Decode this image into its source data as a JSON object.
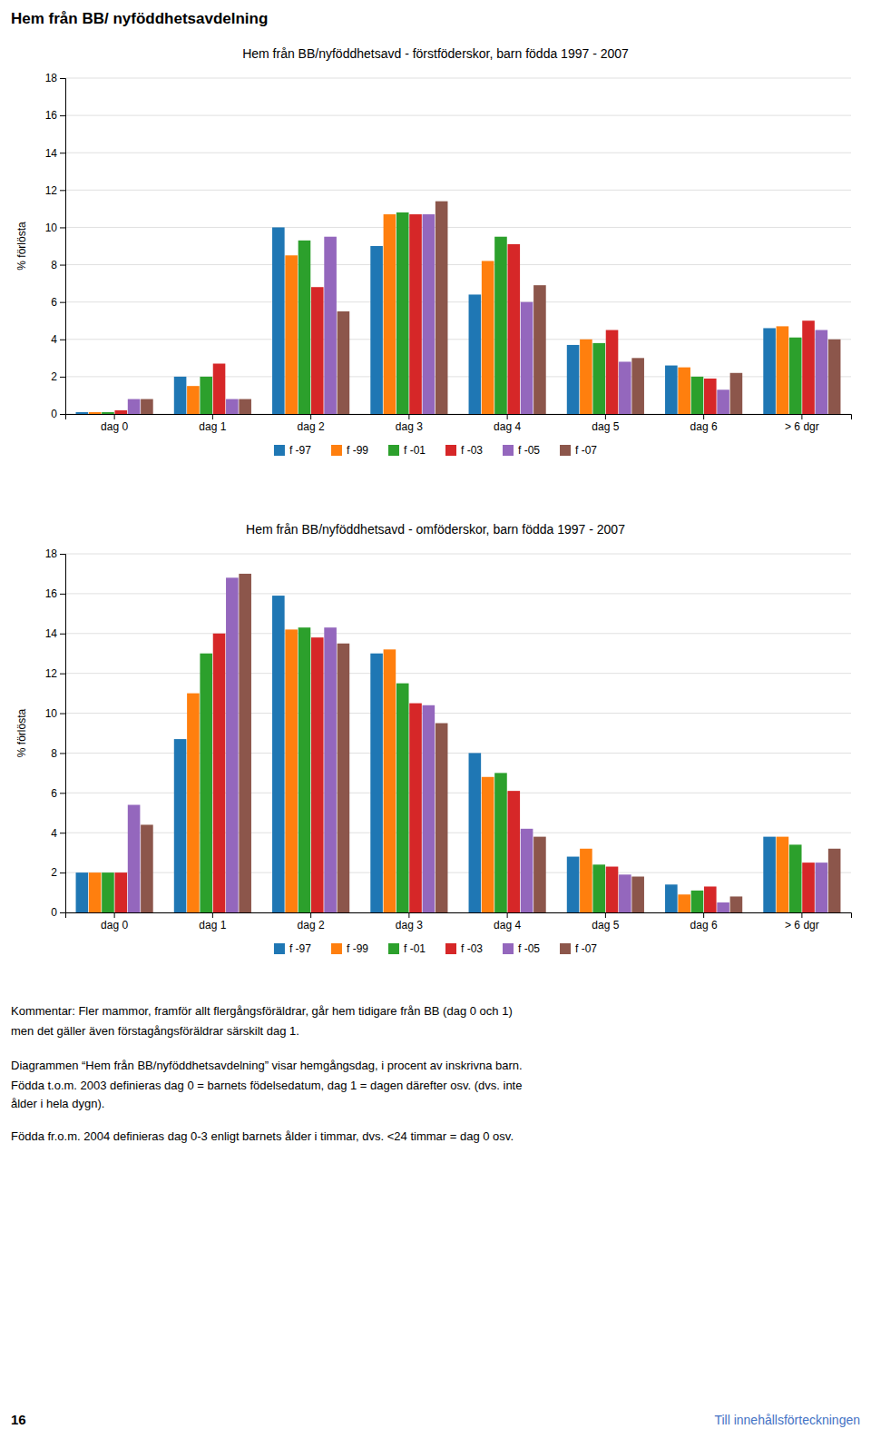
{
  "page_title": "Hem från BB/ nyföddhetsavdelning",
  "chart_data": [
    {
      "type": "bar",
      "title": "Hem från BB/nyföddhetsavd - förstföderskor, barn födda 1997 - 2007",
      "y_label": "% förlösta",
      "categories": [
        "dag 0",
        "dag 1",
        "dag 2",
        "dag 3",
        "dag 4",
        "dag 5",
        "dag 6",
        "> 6 dgr"
      ],
      "series": [
        {
          "name": "f -97",
          "values": [
            0.1,
            2.0,
            10.0,
            9.0,
            6.4,
            3.7,
            2.6,
            4.6
          ]
        },
        {
          "name": "f -99",
          "values": [
            0.1,
            1.5,
            8.5,
            10.7,
            8.2,
            4.0,
            2.5,
            4.7
          ]
        },
        {
          "name": "f -01",
          "values": [
            0.1,
            2.0,
            9.3,
            10.8,
            9.5,
            3.8,
            2.0,
            4.1
          ]
        },
        {
          "name": "f -03",
          "values": [
            0.2,
            2.7,
            6.8,
            10.7,
            9.1,
            4.5,
            1.9,
            5.0
          ]
        },
        {
          "name": "f -05",
          "values": [
            0.8,
            0.8,
            9.5,
            10.7,
            6.0,
            2.8,
            1.3,
            4.5
          ]
        },
        {
          "name": "f -07",
          "values": [
            0.8,
            0.8,
            5.5,
            11.4,
            6.9,
            3.0,
            2.2,
            4.0
          ]
        }
      ],
      "ylim": [
        0,
        18
      ],
      "yticks": [
        0,
        2,
        4,
        6,
        8,
        10,
        12,
        14,
        16,
        18
      ],
      "grid": true,
      "legend": "bottom"
    },
    {
      "type": "bar",
      "title": "Hem från BB/nyföddhetsavd - omföderskor, barn födda 1997 - 2007",
      "y_label": "% förlösta",
      "categories": [
        "dag 0",
        "dag 1",
        "dag 2",
        "dag 3",
        "dag 4",
        "dag 5",
        "dag 6",
        "> 6 dgr"
      ],
      "series": [
        {
          "name": "f -97",
          "values": [
            2.0,
            8.7,
            15.9,
            13.0,
            8.0,
            2.8,
            1.4,
            3.8
          ]
        },
        {
          "name": "f -99",
          "values": [
            2.0,
            11.0,
            14.2,
            13.2,
            6.8,
            3.2,
            0.9,
            3.8
          ]
        },
        {
          "name": "f -01",
          "values": [
            2.0,
            13.0,
            14.3,
            11.5,
            7.0,
            2.4,
            1.1,
            3.4
          ]
        },
        {
          "name": "f -03",
          "values": [
            2.0,
            14.0,
            13.8,
            10.5,
            6.1,
            2.3,
            1.3,
            2.5
          ]
        },
        {
          "name": "f -05",
          "values": [
            5.4,
            16.8,
            14.3,
            10.4,
            4.2,
            1.9,
            0.5,
            2.5
          ]
        },
        {
          "name": "f -07",
          "values": [
            4.4,
            17.0,
            13.5,
            9.5,
            3.8,
            1.8,
            0.8,
            3.2
          ]
        }
      ],
      "ylim": [
        0,
        18
      ],
      "yticks": [
        0,
        2,
        4,
        6,
        8,
        10,
        12,
        14,
        16,
        18
      ],
      "grid": true,
      "legend": "bottom"
    }
  ],
  "text_lines": [
    "Kommentar: Fler mammor, framför allt flergångsföräldrar, går hem tidigare från BB (dag 0 och 1)",
    "men det gäller även förstagångsföräldrar särskilt dag 1.",
    "Diagrammen “Hem från BB/nyföddhetsavdelning” visar hemgångsdag, i procent av inskrivna barn.",
    "Födda t.o.m. 2003 definieras dag 0 = barnets födelsedatum, dag 1 = dagen därefter osv. (dvs. inte",
    "ålder i hela dygn).",
    "Födda fr.o.m. 2004 definieras dag 0-3 enligt barnets ålder i timmar, dvs. <24 timmar = dag 0 osv."
  ],
  "page_number": "16",
  "link_text": "Till innehållsförteckningen",
  "link_color": "#4472C4"
}
